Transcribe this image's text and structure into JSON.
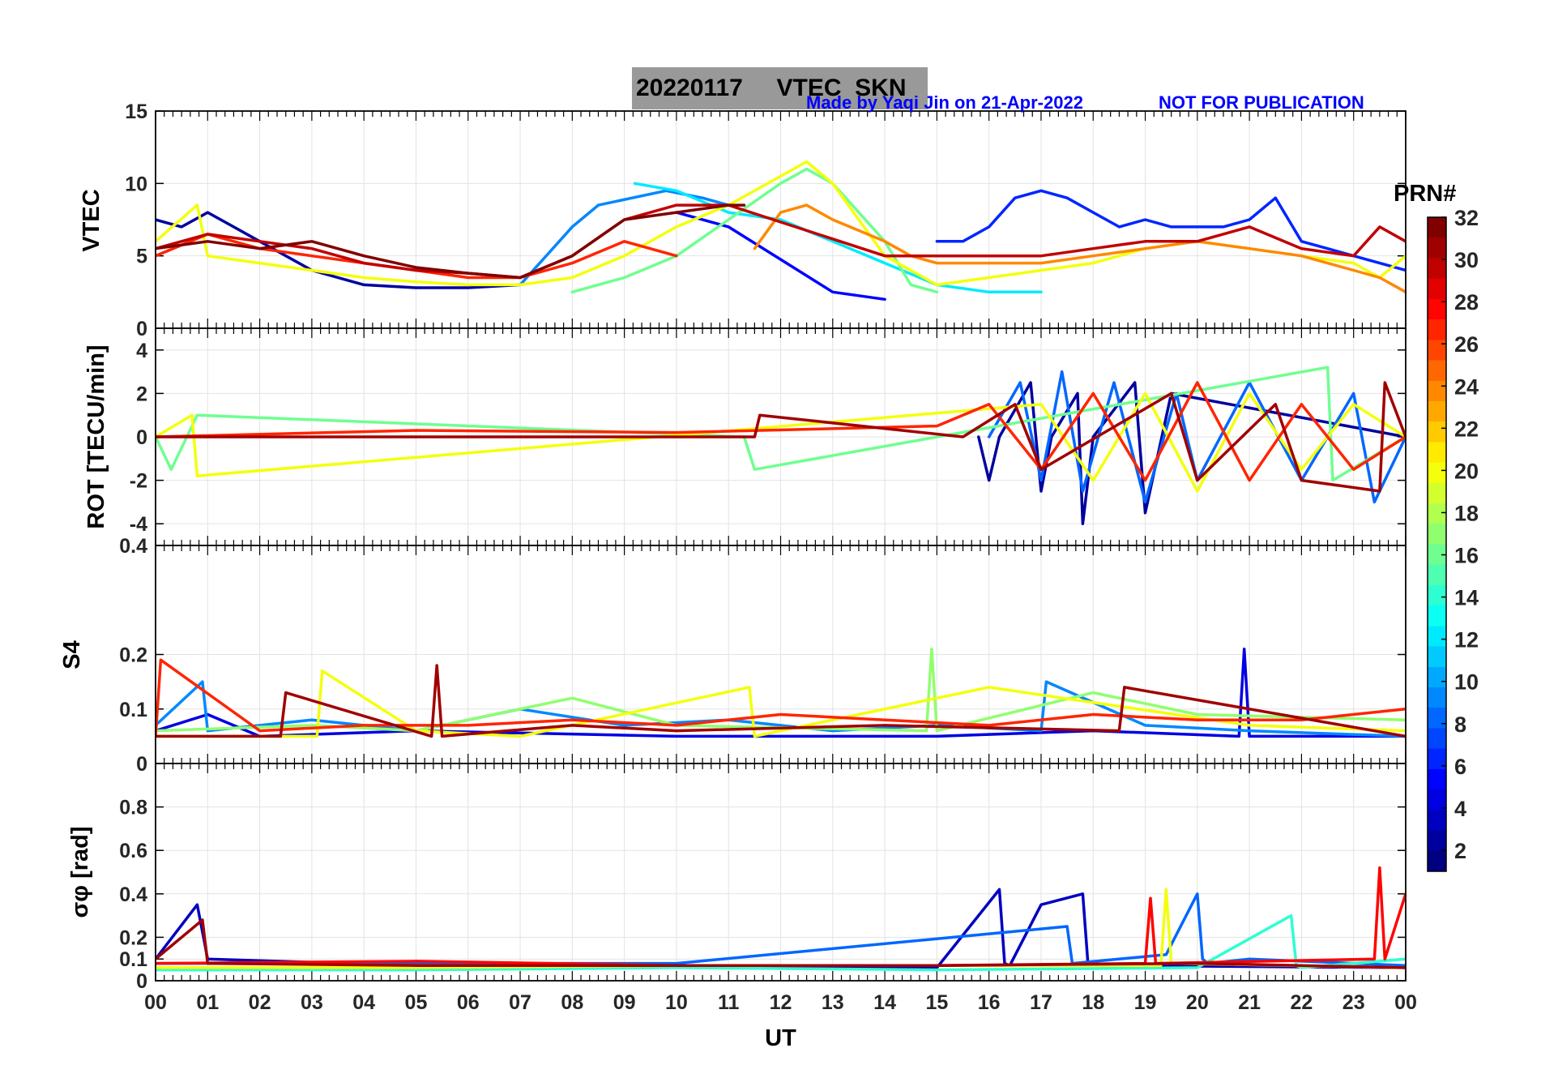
{
  "header": {
    "title": "20220117     VTEC  SKN",
    "credit": "Made by Yaqi Jin on 21-Apr-2022",
    "notice": "NOT FOR PUBLICATION"
  },
  "colorbar": {
    "label": "PRN#",
    "ticks": [
      "2",
      "4",
      "6",
      "8",
      "10",
      "12",
      "14",
      "16",
      "18",
      "20",
      "22",
      "24",
      "26",
      "28",
      "30",
      "32"
    ],
    "range": [
      1,
      32
    ],
    "colormap": "jet"
  },
  "chart_data": [
    {
      "type": "line",
      "panel": "vtec",
      "ylabel": "VTEC",
      "ylim": [
        0,
        15
      ],
      "yticks": [
        "0",
        "5",
        "10",
        "15"
      ],
      "series": [
        {
          "prn": 2,
          "x": [
            0,
            0.5,
            1,
            1.5,
            2,
            3,
            4,
            5,
            6,
            7
          ],
          "y": [
            7.5,
            7,
            8,
            7,
            6,
            4,
            3,
            2.8,
            2.8,
            3
          ]
        },
        {
          "prn": 5,
          "x": [
            10,
            11,
            13,
            14
          ],
          "y": [
            8,
            7,
            2.5,
            2
          ]
        },
        {
          "prn": 6,
          "x": [
            15,
            15.5,
            16,
            16.5,
            17,
            17.5,
            18,
            18.5,
            19,
            19.5,
            20,
            20.5,
            21,
            21.5,
            22,
            22.5,
            23,
            23.5,
            24
          ],
          "y": [
            6,
            6,
            7,
            9,
            9.5,
            9,
            8,
            7,
            7.5,
            7,
            7,
            7,
            7.5,
            9,
            6,
            5.5,
            5,
            4.5,
            4
          ]
        },
        {
          "prn": 9,
          "x": [
            7,
            8,
            8.5,
            9.8,
            10.5,
            11
          ],
          "y": [
            3,
            7,
            8.5,
            9.5,
            9,
            8.5
          ]
        },
        {
          "prn": 12,
          "x": [
            9.2,
            10,
            11,
            12,
            13,
            14,
            15,
            16,
            17
          ],
          "y": [
            10,
            9.5,
            8,
            7.5,
            6,
            4.5,
            3,
            2.5,
            2.5
          ]
        },
        {
          "prn": 16,
          "x": [
            8,
            9,
            10,
            11,
            12,
            12.5,
            13,
            14,
            14.5,
            15
          ],
          "y": [
            2.5,
            3.5,
            5,
            7.5,
            10,
            11,
            10,
            6,
            3,
            2.5
          ]
        },
        {
          "prn": 20,
          "x": [
            0,
            0.8,
            1,
            2,
            3,
            4,
            5,
            6,
            7,
            8,
            9,
            10,
            11,
            12,
            12.5,
            13,
            14,
            15,
            16,
            17,
            18,
            19,
            20,
            21,
            22,
            23,
            23.5,
            24
          ],
          "y": [
            6,
            8.5,
            5,
            4.5,
            4,
            3.5,
            3.2,
            3,
            3,
            3.5,
            5,
            7,
            8.5,
            10.5,
            11.5,
            10,
            5,
            3,
            3.5,
            4,
            4.5,
            5.5,
            6,
            5.5,
            5,
            4.5,
            3.5,
            5
          ]
        },
        {
          "prn": 24,
          "x": [
            11.5,
            12,
            12.5,
            13,
            14,
            14.5,
            15,
            16,
            17,
            18,
            19,
            20,
            21,
            22,
            23,
            23.5,
            24
          ],
          "y": [
            5.5,
            8,
            8.5,
            7.5,
            6,
            5,
            4.5,
            4.5,
            4.5,
            5,
            5.5,
            6,
            5.5,
            5,
            4,
            3.5,
            2.5
          ]
        },
        {
          "prn": 27,
          "x": [
            0,
            1,
            2,
            3,
            4,
            5,
            6,
            7,
            8,
            9,
            10
          ],
          "y": [
            5,
            6.5,
            5.5,
            5,
            4.5,
            4,
            3.5,
            3.5,
            4.5,
            6,
            5
          ]
        },
        {
          "prn": 30,
          "x": [
            0,
            0.5,
            1,
            2,
            3,
            4,
            5,
            6,
            7,
            8,
            9,
            10,
            11,
            14,
            16,
            17,
            18,
            19,
            20,
            21,
            22,
            23,
            23.5,
            24
          ],
          "y": [
            5.5,
            6,
            6.5,
            6,
            5.5,
            4.5,
            4,
            3.8,
            3.5,
            5,
            7.5,
            8.5,
            8.5,
            5,
            5,
            5,
            5.5,
            6,
            6,
            7,
            5.5,
            5,
            7,
            6
          ]
        },
        {
          "prn": 32,
          "x": [
            0,
            1,
            2,
            3,
            4,
            5,
            6,
            7,
            8,
            9,
            10,
            11,
            11.3
          ],
          "y": [
            5.5,
            6,
            5.5,
            6,
            5,
            4.2,
            3.8,
            3.5,
            5,
            7.5,
            8,
            8.5,
            8.5
          ]
        }
      ]
    },
    {
      "type": "line",
      "panel": "rot",
      "ylabel": "ROT [TECU/min]",
      "ylim": [
        -5,
        5
      ],
      "yticks": [
        "-4",
        "-2",
        "0",
        "2",
        "4"
      ],
      "series": [
        {
          "prn": 2,
          "x": [
            15.8,
            16,
            16.2,
            16.8,
            17,
            17.2,
            17.7,
            17.8,
            18,
            18.8,
            19,
            19.5,
            24
          ],
          "y": [
            0,
            -2,
            0,
            2.5,
            -2.5,
            0,
            2,
            -4,
            0,
            2.5,
            -3.5,
            2,
            0
          ]
        },
        {
          "prn": 8,
          "x": [
            16,
            16.6,
            17,
            17.4,
            17.8,
            18.4,
            19,
            19.6,
            20,
            21,
            22,
            23,
            23.4,
            24
          ],
          "y": [
            0,
            2.5,
            -2,
            3,
            -2.5,
            2.5,
            -3,
            2,
            -2,
            2.5,
            -2,
            2,
            -3,
            0
          ]
        },
        {
          "prn": 16,
          "x": [
            0,
            0.3,
            0.8,
            11.3,
            11.5,
            22.5,
            22.6,
            24
          ],
          "y": [
            0,
            -1.5,
            1,
            0,
            -1.5,
            3.2,
            -2,
            0
          ]
        },
        {
          "prn": 20,
          "x": [
            0,
            0.7,
            0.8,
            17,
            18,
            19,
            20,
            21,
            22,
            23,
            24
          ],
          "y": [
            0,
            1,
            -1.8,
            1.5,
            -2,
            2,
            -2.5,
            2,
            -1.5,
            1.5,
            0
          ]
        },
        {
          "prn": 27,
          "x": [
            0,
            5,
            10,
            15,
            16,
            17,
            18,
            19,
            20,
            21,
            22,
            23,
            24
          ],
          "y": [
            0,
            0.3,
            0.2,
            0.5,
            1.5,
            -1.5,
            2,
            -2,
            2.5,
            -2,
            1.5,
            -1.5,
            0
          ]
        },
        {
          "prn": 31,
          "x": [
            0,
            11.5,
            11.6,
            15.5,
            16.5,
            17,
            19.5,
            20,
            21.5,
            22,
            23.5,
            23.6,
            24
          ],
          "y": [
            0,
            0,
            1,
            0,
            1.5,
            -1.5,
            2,
            -2,
            1.5,
            -2,
            -2.5,
            2.5,
            0
          ]
        }
      ]
    },
    {
      "type": "line",
      "panel": "s4",
      "ylabel": "S4",
      "ylim": [
        0,
        0.4
      ],
      "yticks": [
        "0",
        "0.1",
        "0.2",
        "0.4"
      ],
      "series": [
        {
          "prn": 4,
          "x": [
            0,
            1,
            2,
            5,
            10,
            15,
            18,
            20.8,
            20.9,
            21,
            24
          ],
          "y": [
            0.06,
            0.09,
            0.05,
            0.06,
            0.05,
            0.05,
            0.06,
            0.05,
            0.21,
            0.05,
            0.05
          ]
        },
        {
          "prn": 9,
          "x": [
            0,
            0.9,
            1,
            3,
            5,
            7,
            9,
            11,
            13,
            15,
            17,
            17.1,
            19,
            21,
            24
          ],
          "y": [
            0.07,
            0.15,
            0.06,
            0.08,
            0.06,
            0.1,
            0.07,
            0.08,
            0.06,
            0.07,
            0.06,
            0.15,
            0.07,
            0.06,
            0.05
          ]
        },
        {
          "prn": 17,
          "x": [
            0,
            3,
            5,
            8,
            10,
            14.8,
            14.9,
            15,
            18,
            20,
            24
          ],
          "y": [
            0.06,
            0.07,
            0.06,
            0.12,
            0.07,
            0.06,
            0.21,
            0.06,
            0.13,
            0.09,
            0.08
          ]
        },
        {
          "prn": 20,
          "x": [
            0,
            3.1,
            3.2,
            5,
            7,
            11.4,
            11.5,
            16,
            21,
            24
          ],
          "y": [
            0.05,
            0.05,
            0.17,
            0.06,
            0.05,
            0.14,
            0.05,
            0.14,
            0.07,
            0.06
          ]
        },
        {
          "prn": 27,
          "x": [
            0,
            0.1,
            2,
            4,
            6,
            8,
            10,
            12,
            14,
            16,
            18,
            20,
            22,
            24
          ],
          "y": [
            0.05,
            0.19,
            0.06,
            0.07,
            0.07,
            0.08,
            0.07,
            0.09,
            0.08,
            0.07,
            0.09,
            0.08,
            0.08,
            0.1
          ]
        },
        {
          "prn": 31,
          "x": [
            0,
            2.4,
            2.5,
            5.3,
            5.4,
            5.5,
            8,
            10,
            14,
            18.5,
            18.6,
            24
          ],
          "y": [
            0.05,
            0.05,
            0.13,
            0.05,
            0.18,
            0.05,
            0.07,
            0.06,
            0.07,
            0.06,
            0.14,
            0.05
          ]
        }
      ]
    },
    {
      "type": "line",
      "panel": "sigma_phi",
      "ylabel": "σφ [rad]",
      "ylim": [
        0,
        1
      ],
      "yticks": [
        "0",
        "0.1",
        "0.2",
        "0.4",
        "0.6",
        "0.8"
      ],
      "series": [
        {
          "prn": 3,
          "x": [
            0,
            0.8,
            1,
            5,
            10,
            15,
            16.2,
            16.3,
            16.4,
            17,
            17.8,
            17.9,
            18,
            24
          ],
          "y": [
            0.1,
            0.35,
            0.1,
            0.07,
            0.07,
            0.06,
            0.42,
            0.08,
            0.07,
            0.35,
            0.4,
            0.08,
            0.07,
            0.06
          ]
        },
        {
          "prn": 8,
          "x": [
            0,
            5,
            10,
            17.5,
            17.6,
            19.4,
            20,
            20.1,
            20.2,
            21,
            24
          ],
          "y": [
            0.08,
            0.08,
            0.08,
            0.25,
            0.08,
            0.12,
            0.4,
            0.1,
            0.08,
            0.1,
            0.07
          ]
        },
        {
          "prn": 14,
          "x": [
            0,
            5,
            10,
            15,
            20,
            21.8,
            21.9,
            22,
            24
          ],
          "y": [
            0.05,
            0.05,
            0.06,
            0.05,
            0.06,
            0.3,
            0.07,
            0.06,
            0.1
          ]
        },
        {
          "prn": 20,
          "x": [
            0,
            5,
            10,
            19.3,
            19.4,
            19.5,
            24
          ],
          "y": [
            0.06,
            0.06,
            0.07,
            0.07,
            0.42,
            0.08,
            0.06
          ]
        },
        {
          "prn": 28,
          "x": [
            0,
            5,
            10,
            15,
            19,
            19.1,
            19.2,
            23.4,
            23.5,
            23.6,
            24
          ],
          "y": [
            0.08,
            0.09,
            0.07,
            0.07,
            0.08,
            0.38,
            0.08,
            0.1,
            0.52,
            0.1,
            0.4
          ]
        },
        {
          "prn": 31,
          "x": [
            0,
            0.9,
            1,
            5,
            10,
            15,
            20,
            24
          ],
          "y": [
            0.1,
            0.28,
            0.08,
            0.07,
            0.07,
            0.07,
            0.08,
            0.06
          ]
        }
      ]
    }
  ],
  "xaxis": {
    "label": "UT",
    "ticks": [
      "00",
      "01",
      "02",
      "03",
      "04",
      "05",
      "06",
      "07",
      "08",
      "09",
      "10",
      "11",
      "12",
      "13",
      "14",
      "15",
      "16",
      "17",
      "18",
      "19",
      "20",
      "21",
      "22",
      "23",
      "00"
    ]
  }
}
